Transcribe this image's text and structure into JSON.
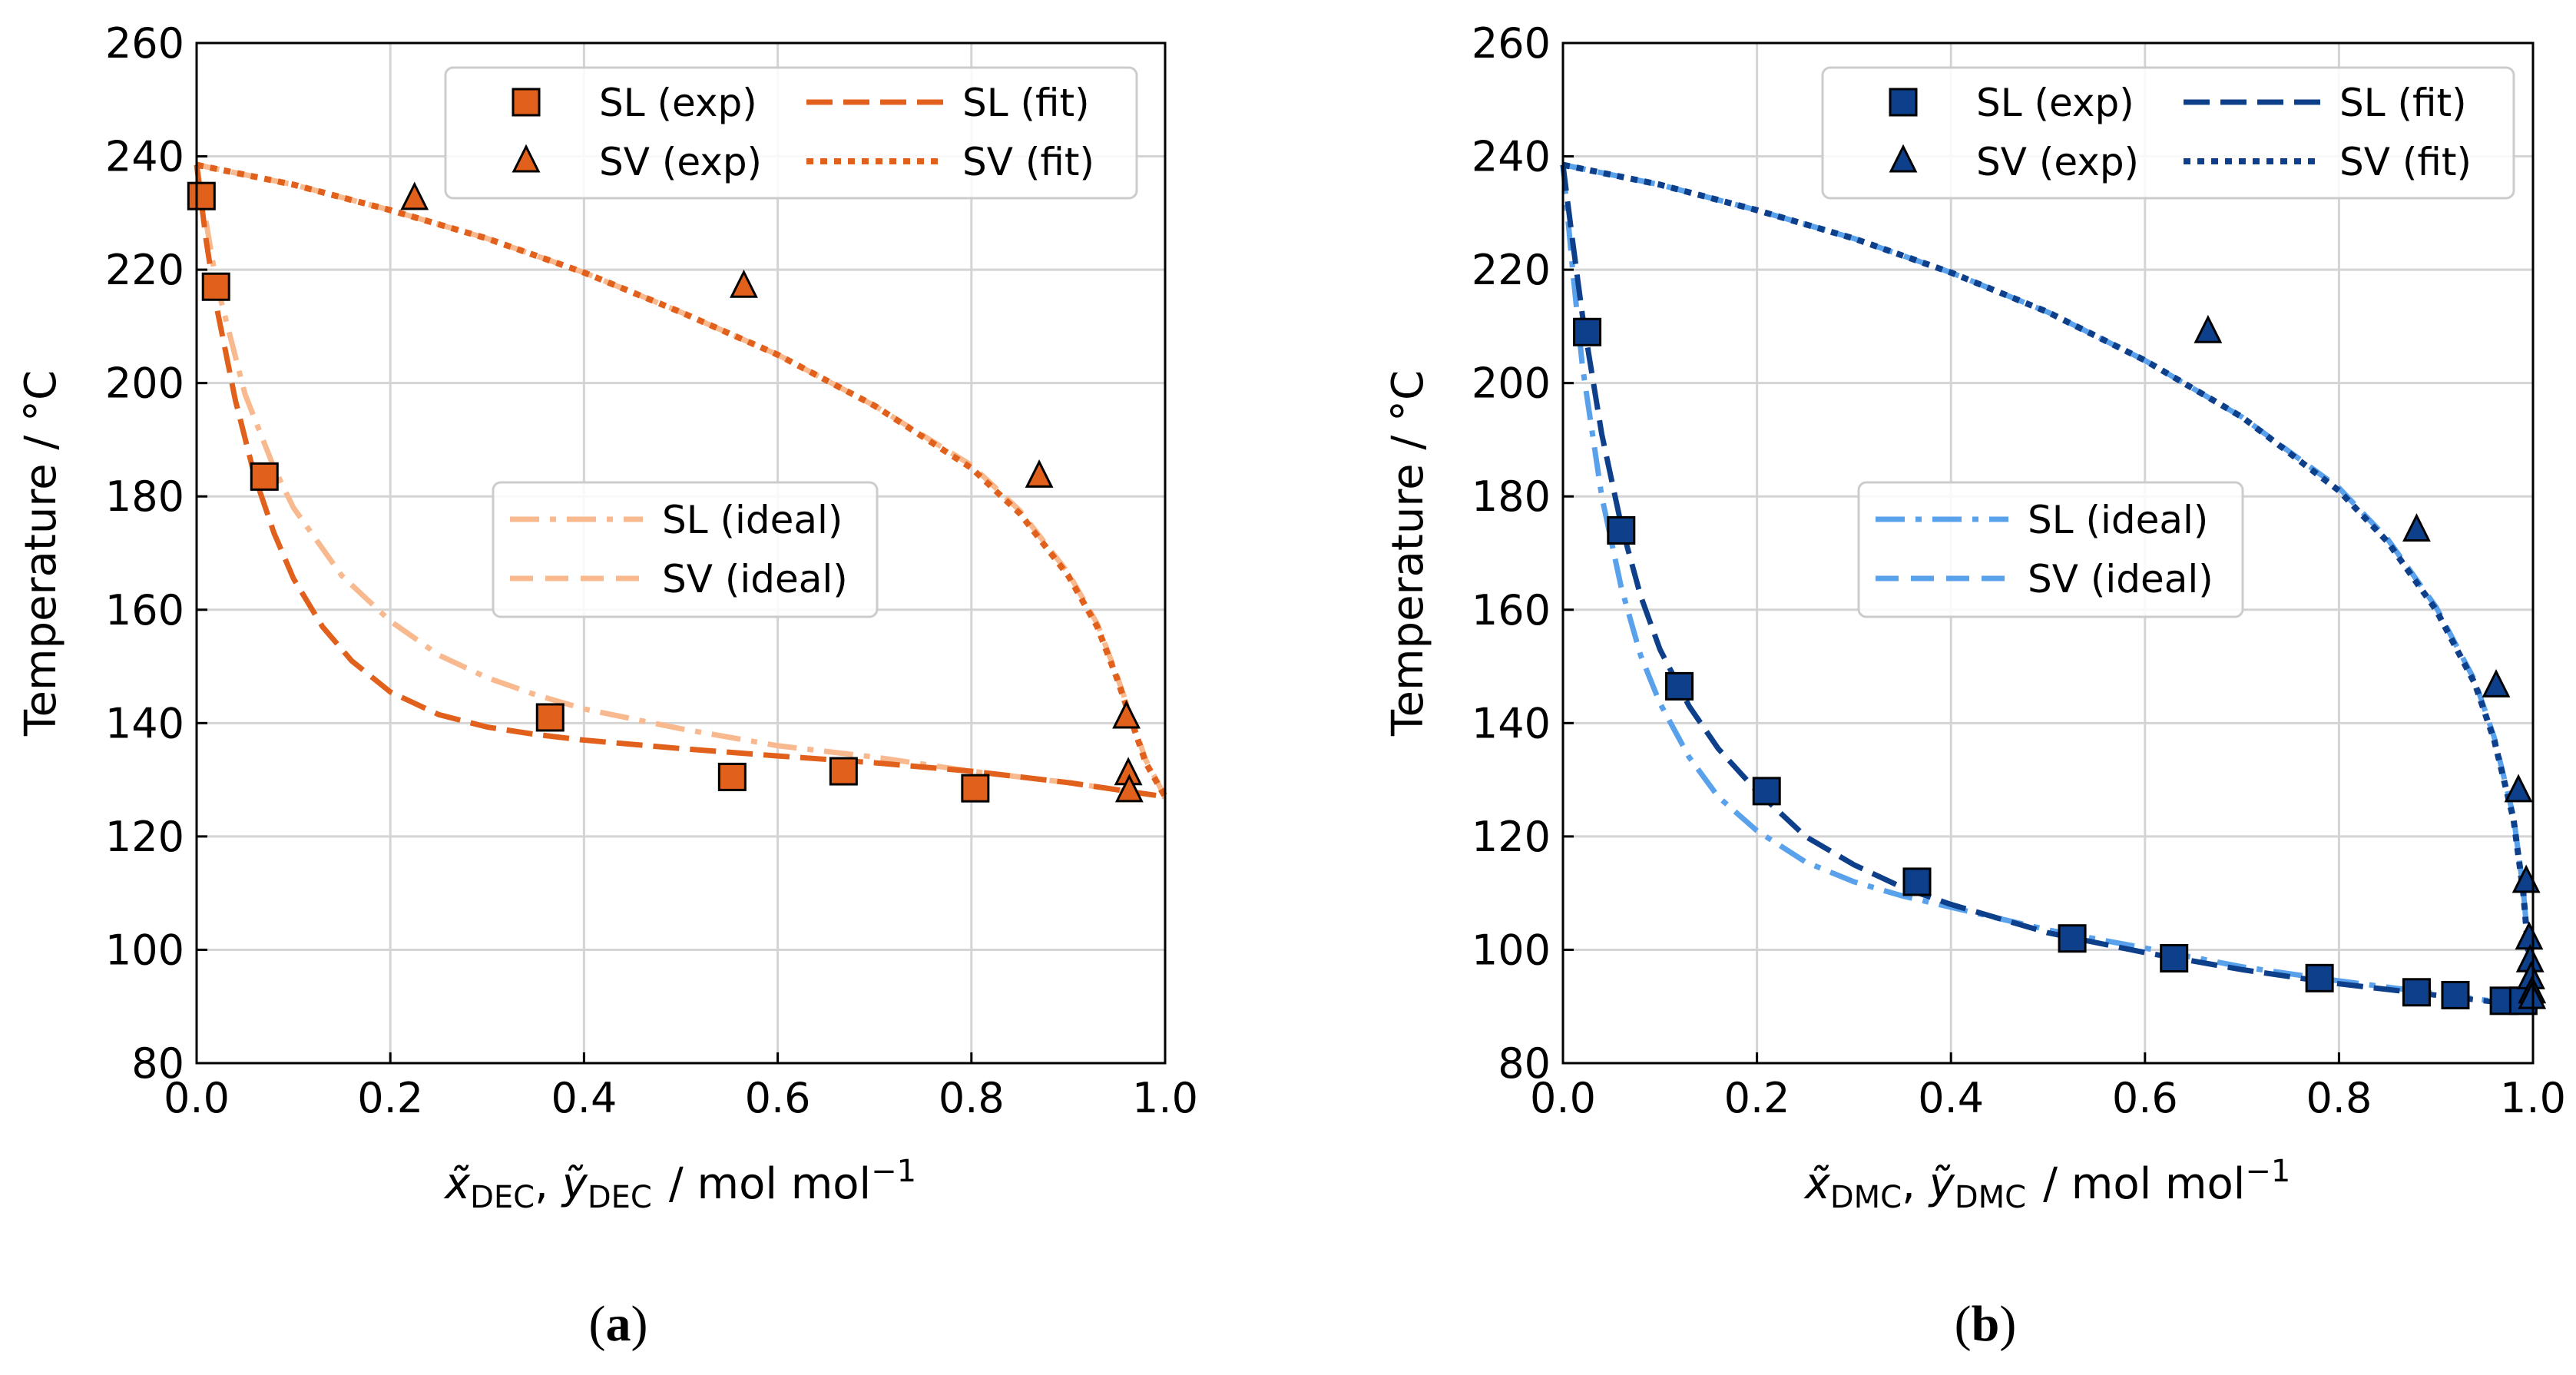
{
  "figure": {
    "panels": [
      "a",
      "b"
    ]
  },
  "chart_data": [
    {
      "type": "line",
      "panel_label": "(a)",
      "title": "",
      "component": "DEC",
      "xlabel_var1": "x̃",
      "xlabel_var2": "ỹ",
      "xlabel_unit": "/ mol mol",
      "xlabel_sup": "−1",
      "ylabel": "Temperature / °C",
      "xlim": [
        0,
        1
      ],
      "ylim": [
        80,
        260
      ],
      "xticks": [
        "0.0",
        "0.2",
        "0.4",
        "0.6",
        "0.8",
        "1.0"
      ],
      "yticks": [
        "80",
        "100",
        "120",
        "140",
        "160",
        "180",
        "200",
        "220",
        "240",
        "260"
      ],
      "grid": true,
      "colors": {
        "main": "#e0601c",
        "ideal": "#f9b98f"
      },
      "legend_main": [
        "SL (exp)",
        "SV (exp)",
        "SL (fit)",
        "SV (fit)"
      ],
      "legend_ideal": [
        "SL (ideal)",
        "SV (ideal)"
      ],
      "series": [
        {
          "name": "SL (exp)",
          "kind": "square",
          "x": [
            0.005,
            0.02,
            0.07,
            0.365,
            0.553,
            0.668,
            0.804
          ],
          "y": [
            233,
            217,
            183.5,
            141,
            130.5,
            131.5,
            128.5
          ]
        },
        {
          "name": "SV (exp)",
          "kind": "triangle",
          "x": [
            0.225,
            0.565,
            0.87,
            0.96,
            0.962,
            0.963
          ],
          "y": [
            232.5,
            217,
            183.5,
            141,
            131,
            128
          ]
        },
        {
          "name": "SL (fit)",
          "kind": "dashed",
          "x": [
            0,
            0.01,
            0.02,
            0.04,
            0.06,
            0.08,
            0.1,
            0.13,
            0.16,
            0.2,
            0.25,
            0.3,
            0.35,
            0.4,
            0.5,
            0.6,
            0.7,
            0.8,
            0.9,
            1.0
          ],
          "y": [
            238.5,
            225,
            214,
            197,
            183.5,
            173.5,
            165.5,
            157,
            151,
            145.5,
            141.5,
            139.3,
            138,
            137,
            135.5,
            134.2,
            133,
            131.5,
            129.5,
            127
          ]
        },
        {
          "name": "SV (fit)",
          "kind": "dotted",
          "x": [
            0,
            0.1,
            0.2,
            0.3,
            0.4,
            0.5,
            0.6,
            0.7,
            0.8,
            0.85,
            0.9,
            0.93,
            0.95,
            0.97,
            0.98,
            1.0
          ],
          "y": [
            238.5,
            235,
            230.5,
            225.5,
            219.5,
            212.5,
            205,
            196,
            185,
            177,
            166,
            157,
            148,
            138,
            133,
            127
          ]
        },
        {
          "name": "SL (ideal)",
          "kind": "dashdot",
          "x": [
            0,
            0.02,
            0.05,
            0.08,
            0.1,
            0.15,
            0.2,
            0.25,
            0.3,
            0.35,
            0.4,
            0.5,
            0.6,
            0.7,
            0.8,
            0.9,
            1.0
          ],
          "y": [
            238.5,
            218,
            198,
            185,
            178,
            166,
            158,
            152,
            148,
            145,
            142.5,
            139,
            136,
            134,
            131.5,
            129.5,
            127
          ]
        },
        {
          "name": "SV (ideal)",
          "kind": "dashed-light",
          "x": [
            0,
            0.1,
            0.2,
            0.3,
            0.4,
            0.5,
            0.6,
            0.7,
            0.8,
            0.85,
            0.9,
            0.93,
            0.95,
            0.97,
            0.98,
            1.0
          ],
          "y": [
            238.5,
            235,
            230.5,
            225.5,
            219.5,
            212.5,
            205,
            196,
            185.5,
            177.5,
            166.5,
            157.5,
            148.5,
            138.5,
            133.5,
            127
          ]
        }
      ]
    },
    {
      "type": "line",
      "panel_label": "(b)",
      "title": "",
      "component": "DMC",
      "xlabel_var1": "x̃",
      "xlabel_var2": "ỹ",
      "xlabel_unit": "/ mol mol",
      "xlabel_sup": "−1",
      "ylabel": "Temperature / °C",
      "xlim": [
        0,
        1
      ],
      "ylim": [
        80,
        260
      ],
      "xticks": [
        "0.0",
        "0.2",
        "0.4",
        "0.6",
        "0.8",
        "1.0"
      ],
      "yticks": [
        "80",
        "100",
        "120",
        "140",
        "160",
        "180",
        "200",
        "220",
        "240",
        "260"
      ],
      "grid": true,
      "colors": {
        "main": "#0d3f8a",
        "ideal": "#5aa1ec"
      },
      "legend_main": [
        "SL (exp)",
        "SV (exp)",
        "SL (fit)",
        "SV (fit)"
      ],
      "legend_ideal": [
        "SL (ideal)",
        "SV (ideal)"
      ],
      "series": [
        {
          "name": "SL (exp)",
          "kind": "square",
          "x": [
            0.025,
            0.06,
            0.12,
            0.21,
            0.365,
            0.525,
            0.63,
            0.78,
            0.88,
            0.92,
            0.97,
            0.99
          ],
          "y": [
            209,
            174,
            146.5,
            128,
            112,
            102,
            98.5,
            95,
            92.5,
            92,
            91,
            91
          ]
        },
        {
          "name": "SV (exp)",
          "kind": "triangle",
          "x": [
            0.665,
            0.88,
            0.962,
            0.985,
            0.993,
            0.996,
            0.997,
            0.998,
            0.999,
            0.999
          ],
          "y": [
            209,
            174,
            146.5,
            128,
            112,
            102,
            98,
            95,
            92.5,
            91.5
          ]
        },
        {
          "name": "SL (fit)",
          "kind": "dashed",
          "x": [
            0,
            0.01,
            0.02,
            0.04,
            0.06,
            0.08,
            0.1,
            0.13,
            0.16,
            0.2,
            0.25,
            0.3,
            0.35,
            0.4,
            0.5,
            0.6,
            0.7,
            0.8,
            0.9,
            1.0
          ],
          "y": [
            238.5,
            225,
            212,
            191,
            175,
            162.5,
            153,
            143,
            135.5,
            128,
            120,
            115,
            111,
            108,
            103,
            99.5,
            96.5,
            94,
            92,
            90
          ]
        },
        {
          "name": "SV (fit)",
          "kind": "dotted",
          "x": [
            0,
            0.1,
            0.2,
            0.3,
            0.4,
            0.5,
            0.6,
            0.7,
            0.8,
            0.85,
            0.9,
            0.94,
            0.96,
            0.98,
            0.99,
            0.995,
            1.0
          ],
          "y": [
            238.5,
            235,
            230.5,
            225.5,
            219.5,
            212.5,
            204,
            194,
            181,
            172,
            160,
            147,
            137,
            123,
            110,
            100,
            90
          ]
        },
        {
          "name": "SL (ideal)",
          "kind": "dashdot",
          "x": [
            0,
            0.01,
            0.02,
            0.04,
            0.06,
            0.08,
            0.1,
            0.13,
            0.16,
            0.2,
            0.25,
            0.3,
            0.35,
            0.4,
            0.5,
            0.6,
            0.7,
            0.8,
            0.9,
            1.0
          ],
          "y": [
            238.5,
            220,
            203,
            180,
            164,
            152,
            143.5,
            134,
            127,
            121,
            115.5,
            112,
            109.5,
            107.5,
            103.5,
            100.3,
            97,
            94.5,
            92.3,
            90
          ]
        },
        {
          "name": "SV (ideal)",
          "kind": "dashed-light",
          "x": [
            0,
            0.1,
            0.2,
            0.3,
            0.4,
            0.5,
            0.6,
            0.7,
            0.8,
            0.85,
            0.9,
            0.94,
            0.96,
            0.98,
            0.99,
            0.995,
            1.0
          ],
          "y": [
            238.5,
            235,
            230.5,
            225.5,
            219.5,
            212.5,
            204,
            194,
            181.5,
            172.5,
            160.5,
            147.5,
            137.5,
            123.5,
            110.5,
            100.5,
            90
          ]
        }
      ]
    }
  ]
}
